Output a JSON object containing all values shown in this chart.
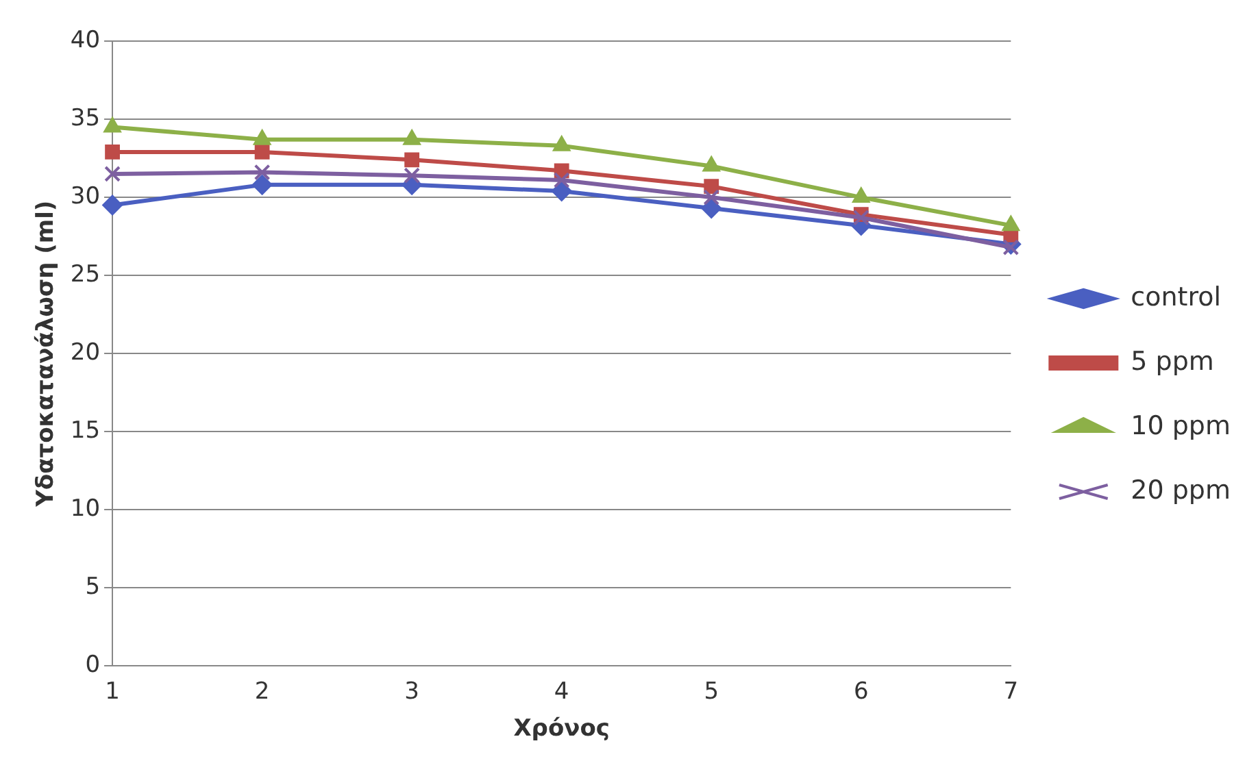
{
  "chart_data": {
    "type": "line",
    "xlabel": "Χρόνος",
    "ylabel": "Υδατοκατανάλωση (ml)",
    "categories": [
      "1",
      "2",
      "3",
      "4",
      "5",
      "6",
      "7"
    ],
    "series": [
      {
        "name": "control",
        "color": "#4a5fc1",
        "marker": "diamond",
        "values": [
          29.5,
          30.8,
          30.8,
          30.4,
          29.3,
          28.2,
          27.0
        ]
      },
      {
        "name": "5 ppm",
        "color": "#be4b48",
        "marker": "square",
        "values": [
          32.9,
          32.9,
          32.4,
          31.7,
          30.7,
          28.9,
          27.6
        ]
      },
      {
        "name": "10 ppm",
        "color": "#8db048",
        "marker": "triangle",
        "values": [
          34.5,
          33.7,
          33.7,
          33.3,
          32.0,
          30.0,
          28.2
        ]
      },
      {
        "name": "20 ppm",
        "color": "#7d5fa0",
        "marker": "cross",
        "values": [
          31.5,
          31.6,
          31.4,
          31.1,
          30.0,
          28.7,
          26.8
        ]
      }
    ],
    "ylim": [
      0,
      40
    ],
    "yticks": [
      0,
      5,
      10,
      15,
      20,
      25,
      30,
      35,
      40
    ],
    "grid": "y",
    "legend": "right"
  }
}
